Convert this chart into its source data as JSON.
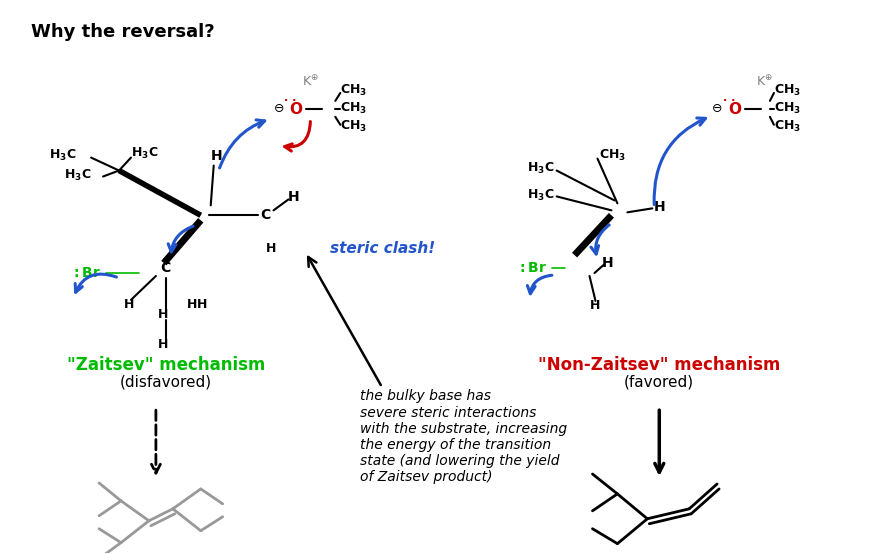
{
  "title": "Why the reversal?",
  "bg_color": "#ffffff",
  "zaitsev_label": "\"Zaitsev\" mechanism",
  "zaitsev_sub": "(disfavored)",
  "zaitsev_color": "#00bb00",
  "nonzaitsev_label": "\"Non-Zaitsev\" mechanism",
  "nonzaitsev_sub": "(favored)",
  "nonzaitsev_color": "#cc0000",
  "steric_clash_text": "steric clash!",
  "steric_clash_color": "#2255cc",
  "explanation_text": "the bulky base has\nsevere steric interactions\nwith the substrate, increasing\nthe energy of the transition\nstate (and lowering the yield\nof Zaitsev product)",
  "br_color": "#00bb00",
  "o_color": "#cc0000",
  "arrow_color": "#2255cc",
  "gray_color": "#999999"
}
